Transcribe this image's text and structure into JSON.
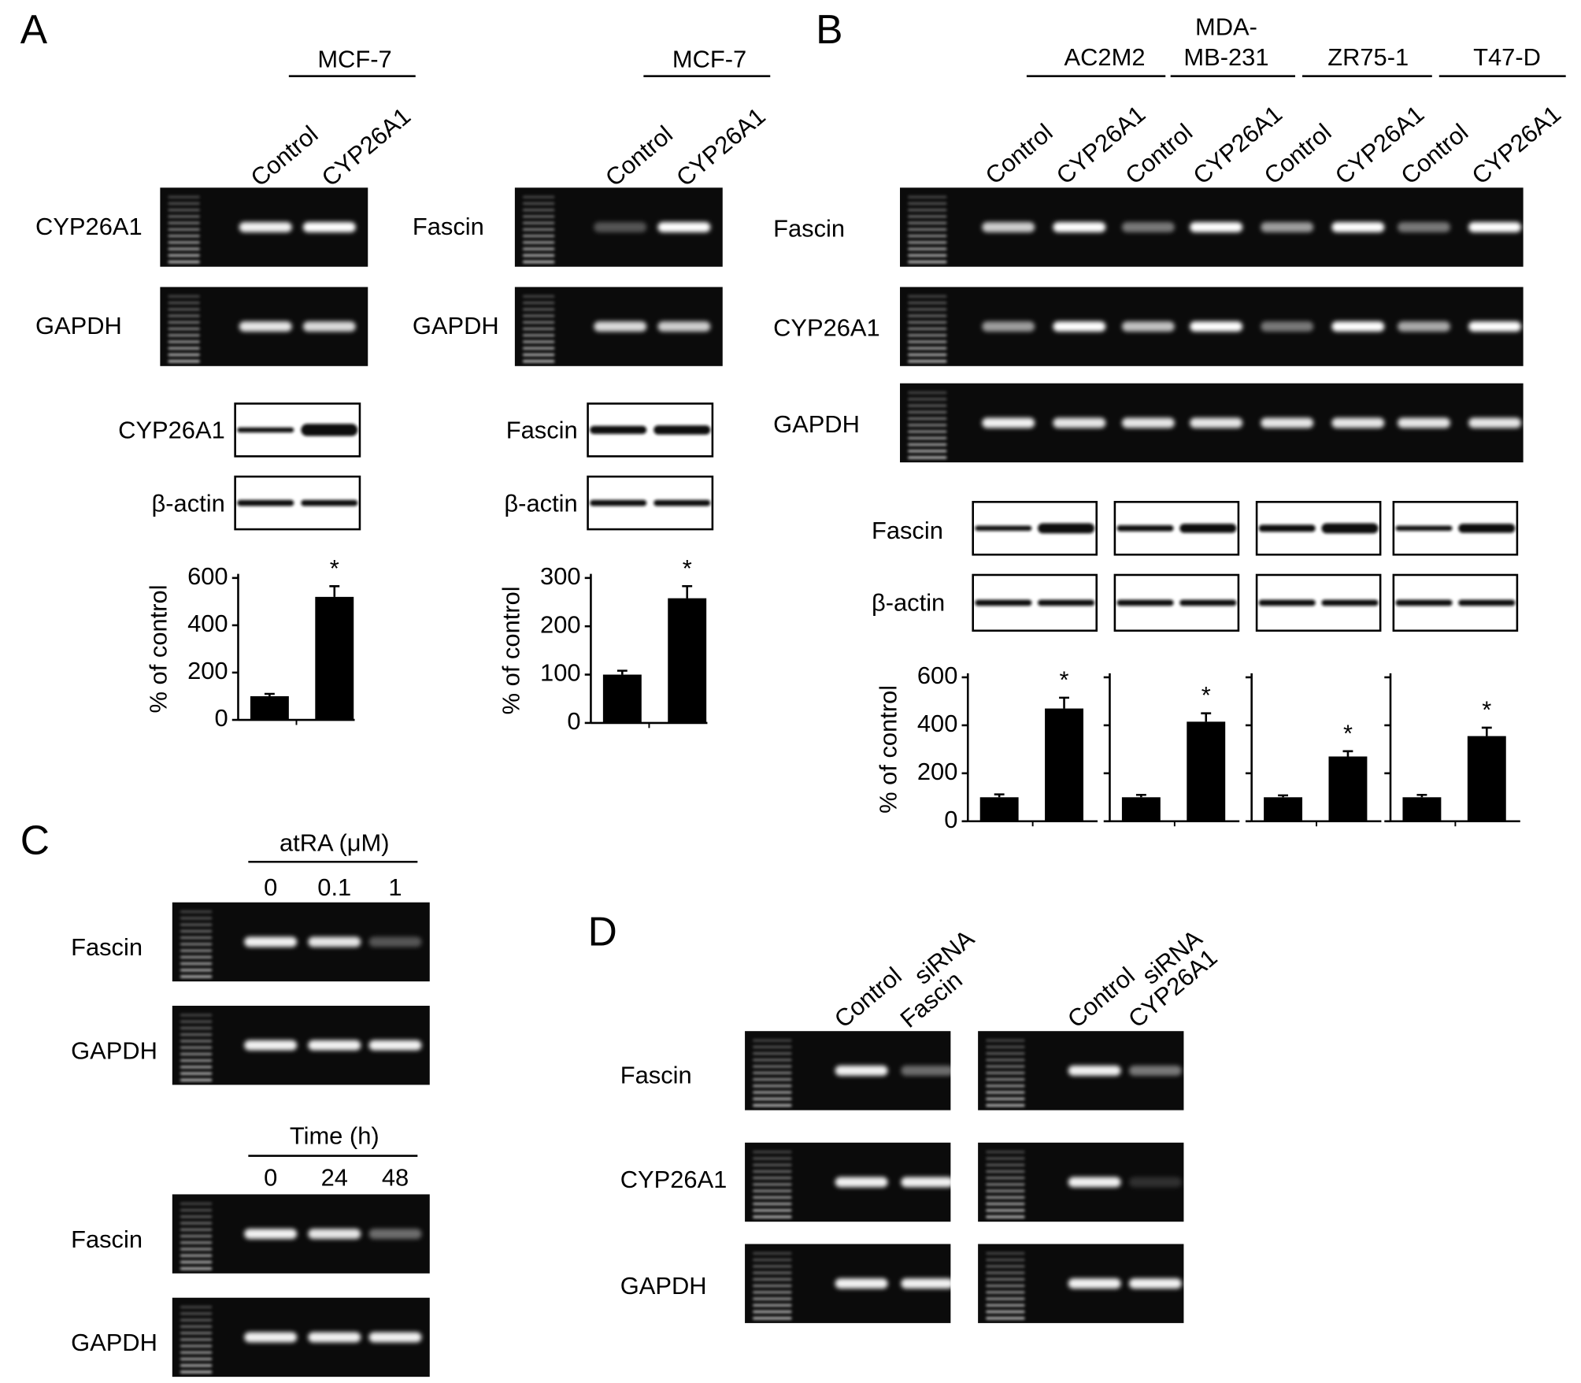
{
  "panel_a": {
    "label": "A",
    "left": {
      "group": "MCF-7",
      "lanes": [
        "Control",
        "CYP26A1"
      ],
      "rt_rows": [
        "CYP26A1",
        "GAPDH"
      ],
      "wb_rows": [
        "CYP26A1",
        "β-actin"
      ],
      "chart": {
        "type": "bar",
        "ylabel": "% of control",
        "ylim": [
          0,
          600
        ],
        "yticks": [
          0,
          200,
          400,
          600
        ],
        "values": [
          100,
          520
        ],
        "errors": [
          10,
          45
        ],
        "star": "*"
      }
    },
    "right": {
      "group": "MCF-7",
      "lanes": [
        "Control",
        "CYP26A1"
      ],
      "rt_rows": [
        "Fascin",
        "GAPDH"
      ],
      "wb_rows": [
        "Fascin",
        "β-actin"
      ],
      "chart": {
        "type": "bar",
        "ylabel": "% of control",
        "ylim": [
          0,
          300
        ],
        "yticks": [
          0,
          100,
          200,
          300
        ],
        "values": [
          100,
          258
        ],
        "errors": [
          8,
          25
        ],
        "star": "*"
      }
    }
  },
  "panel_b": {
    "label": "B",
    "groups": [
      [
        "AC2M2"
      ],
      [
        "MDA-",
        "MB-231"
      ],
      [
        "ZR75-1"
      ],
      [
        "T47-D"
      ]
    ],
    "lanes": [
      "Control",
      "CYP26A1"
    ],
    "rt_rows": [
      "Fascin",
      "CYP26A1",
      "GAPDH"
    ],
    "wb_rows": [
      "Fascin",
      "β-actin"
    ],
    "chart": {
      "type": "bar",
      "ylabel": "% of control",
      "ylim": [
        0,
        600
      ],
      "yticks": [
        0,
        200,
        400,
        600
      ],
      "star": "*",
      "series": [
        {
          "values": [
            100,
            470
          ],
          "errors": [
            12,
            45
          ]
        },
        {
          "values": [
            100,
            415
          ],
          "errors": [
            10,
            35
          ]
        },
        {
          "values": [
            100,
            270
          ],
          "errors": [
            8,
            22
          ]
        },
        {
          "values": [
            100,
            355
          ],
          "errors": [
            10,
            35
          ]
        }
      ]
    }
  },
  "panel_c": {
    "label": "C",
    "blocks": [
      {
        "header": "atRA (μM)",
        "lanes": [
          "0",
          "0.1",
          "1"
        ],
        "rows": [
          "Fascin",
          "GAPDH"
        ]
      },
      {
        "header": "Time (h)",
        "lanes": [
          "0",
          "24",
          "48"
        ],
        "rows": [
          "Fascin",
          "GAPDH"
        ]
      }
    ]
  },
  "panel_d": {
    "label": "D",
    "rows": [
      "Fascin",
      "CYP26A1",
      "GAPDH"
    ],
    "blocks": [
      {
        "lanes": [
          "Control",
          [
            "Fascin",
            "siRNA"
          ]
        ]
      },
      {
        "lanes": [
          "Control",
          [
            "CYP26A1",
            "siRNA"
          ]
        ]
      }
    ]
  }
}
